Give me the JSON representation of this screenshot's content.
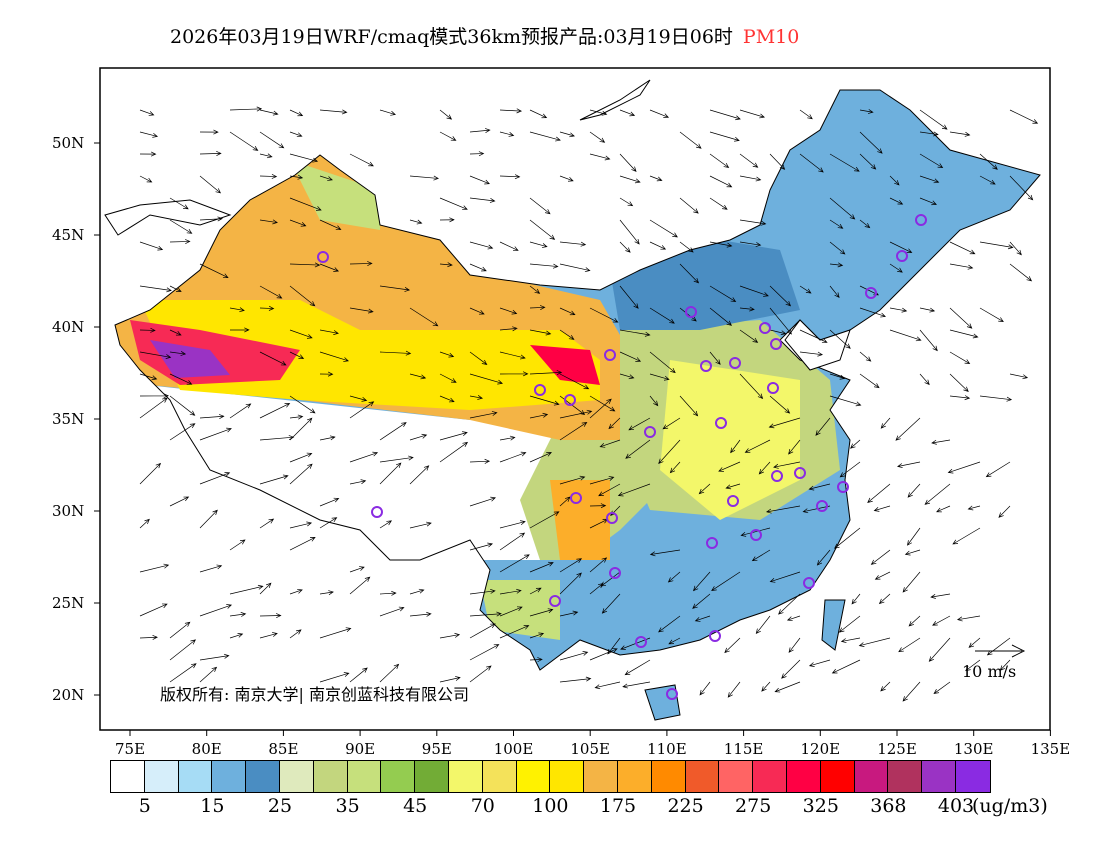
{
  "title": {
    "text": "2026年03月19日WRF/cmaq模式36km预报产品:03月19日06时",
    "pollutant": "PM10",
    "pollutant_color": "#ff3333"
  },
  "lat_labels": [
    "50N",
    "45N",
    "40N",
    "35N",
    "30N",
    "25N",
    "20N"
  ],
  "lon_labels": [
    "75E",
    "80E",
    "85E",
    "90E",
    "95E",
    "100E",
    "105E",
    "110E",
    "115E",
    "120E",
    "125E",
    "130E",
    "135E"
  ],
  "colorbar": {
    "colors": [
      "#ffffff",
      "#d6eefa",
      "#a6dcf5",
      "#6eb0dd",
      "#4a8dc2",
      "#dfeabd",
      "#c3d67e",
      "#c6e07c",
      "#94cc50",
      "#72ac36",
      "#f3f76a",
      "#f4e25a",
      "#fff200",
      "#ffe600",
      "#f4b445",
      "#fcae2a",
      "#ff8a00",
      "#f05a2a",
      "#ff6464",
      "#f72a55",
      "#ff0044",
      "#ff0000",
      "#c8197f",
      "#b0325e",
      "#9a33c4",
      "#8a2be2"
    ],
    "labels": [
      "5",
      "15",
      "25",
      "35",
      "45",
      "70",
      "100",
      "175",
      "225",
      "275",
      "325",
      "368",
      "403"
    ],
    "unit": "(ug/m3)"
  },
  "copyright": "版权所有: 南京大学| 南京创蓝科技有限公司",
  "wind_scale": "10 m/s"
}
